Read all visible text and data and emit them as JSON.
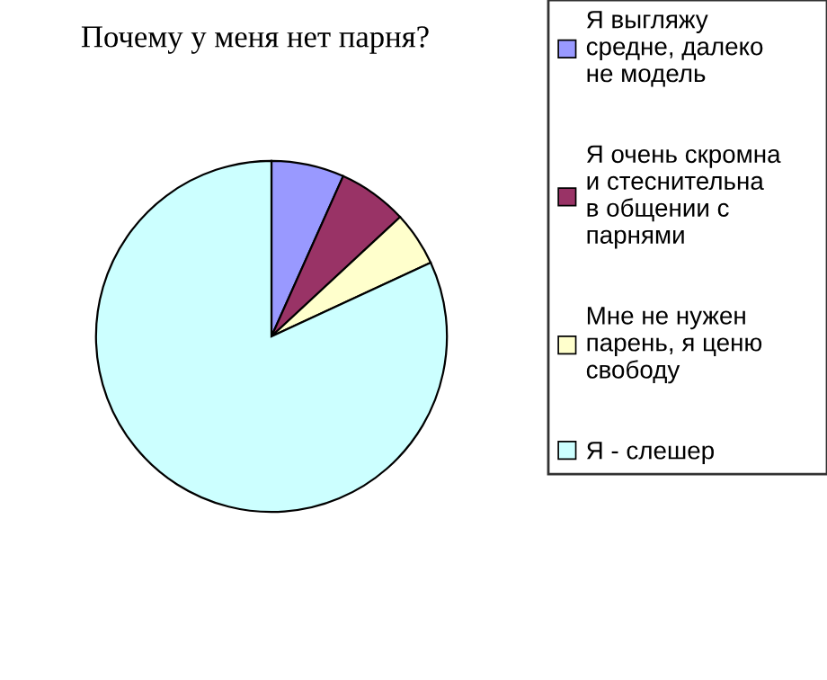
{
  "chart_data": {
    "type": "pie",
    "title": "Почему у меня нет парня?",
    "categories": [
      "Я выгляжу средне, далеко не модель",
      "Я очень скромна и стеснительна в общении с парнями",
      "Мне не нужен парень, я ценю свободу",
      "Я - слешер"
    ],
    "values": [
      6.7,
      6.4,
      5.0,
      81.9
    ],
    "colors": [
      "#9999ff",
      "#993366",
      "#ffffcc",
      "#ccffff"
    ],
    "legend": "right"
  }
}
